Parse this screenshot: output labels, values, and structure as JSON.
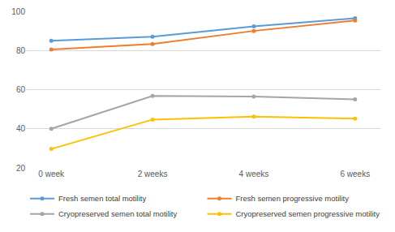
{
  "chart_data": {
    "type": "line",
    "categories": [
      "0 week",
      "2 weeks",
      "4 weeks",
      "6 weeks"
    ],
    "series": [
      {
        "name": "Fresh semen total motility",
        "color": "#5b9bd5",
        "values": [
          85,
          87,
          92.3,
          96.5
        ]
      },
      {
        "name": "Fresh semen progressive motility",
        "color": "#ed7d31",
        "values": [
          80.5,
          83.3,
          90,
          95.3
        ]
      },
      {
        "name": "Cryopreserved semen total motility",
        "color": "#a5a5a5",
        "values": [
          40,
          56.8,
          56.5,
          55
        ]
      },
      {
        "name": "Cryopreserved semen progressive motility",
        "color": "#ffc000",
        "values": [
          29.7,
          44.7,
          46.2,
          45.2
        ]
      }
    ],
    "ylim": [
      20,
      100
    ],
    "yticks": [
      20,
      40,
      60,
      80,
      100
    ],
    "grid": true,
    "legend": "bottom",
    "marker": "circle"
  }
}
